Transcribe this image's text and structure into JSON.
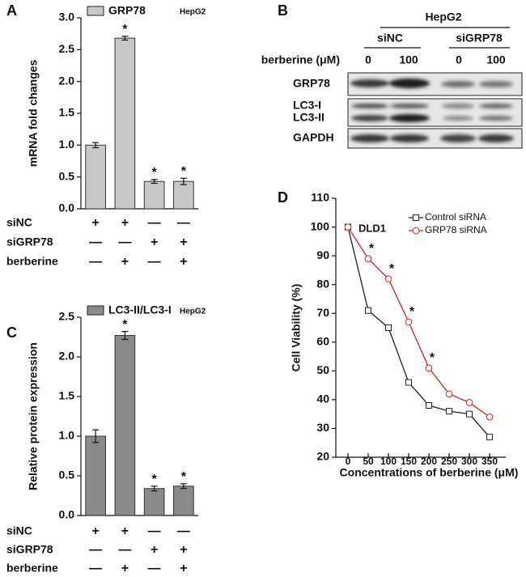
{
  "chart_data": [
    {
      "type": "bar",
      "panel": "A",
      "ylabel": "mRNA fold changes",
      "subtitle": "HepG2",
      "ylim": [
        0,
        3
      ],
      "yticks": [
        {
          "value": 0,
          "label": "0.0"
        },
        0.5,
        {
          "value": 1,
          "label": "1.0"
        },
        1.5,
        {
          "value": 2,
          "label": "2.0"
        },
        2.5,
        {
          "value": 3,
          "label": "3.0"
        }
      ],
      "series": [
        {
          "name": "GRP78",
          "color": "#c8c8c8",
          "values": [
            1.0,
            2.68,
            0.43,
            0.43
          ],
          "errors": [
            0.04,
            0.03,
            0.03,
            0.05
          ]
        }
      ],
      "annotations": [
        {
          "index": 1,
          "text": "*"
        },
        {
          "index": 2,
          "text": "*"
        },
        {
          "index": 3,
          "text": "*"
        }
      ],
      "conditions": [
        {
          "label": "siNC",
          "marks": [
            "+",
            "+",
            "—",
            "—"
          ]
        },
        {
          "label": "siGRP78",
          "marks": [
            "—",
            "—",
            "+",
            "+"
          ]
        },
        {
          "label": "berberine",
          "marks": [
            "—",
            "+",
            "—",
            "+"
          ]
        }
      ]
    },
    {
      "type": "bar",
      "panel": "C",
      "ylabel": "Relative protein expression",
      "subtitle": "HepG2",
      "ylim": [
        0,
        2.5
      ],
      "yticks": [
        {
          "value": 0,
          "label": "0.0"
        },
        0.5,
        {
          "value": 1,
          "label": "1.0"
        },
        1.5,
        {
          "value": 2,
          "label": "2.0"
        },
        2.5
      ],
      "series": [
        {
          "name": "LC3-II/LC3-I",
          "color": "#8a8a8a",
          "values": [
            1.0,
            2.27,
            0.34,
            0.37
          ],
          "errors": [
            0.08,
            0.05,
            0.03,
            0.03
          ]
        }
      ],
      "annotations": [
        {
          "index": 1,
          "text": "*"
        },
        {
          "index": 2,
          "text": "*"
        },
        {
          "index": 3,
          "text": "*"
        }
      ],
      "conditions": [
        {
          "label": "siNC",
          "marks": [
            "+",
            "+",
            "—",
            "—"
          ]
        },
        {
          "label": "siGRP78",
          "marks": [
            "—",
            "—",
            "+",
            "+"
          ]
        },
        {
          "label": "berberine",
          "marks": [
            "—",
            "+",
            "—",
            "+"
          ]
        }
      ]
    },
    {
      "type": "line",
      "panel": "D",
      "title": "DLD1",
      "xlabel": "Concentrations of berberine (μM)",
      "ylabel": "Cell Viability (%)",
      "x": [
        0,
        50,
        100,
        150,
        200,
        250,
        300,
        350
      ],
      "xlim": [
        -30,
        390
      ],
      "xticks": [
        0,
        50,
        100,
        150,
        200,
        250,
        300,
        350
      ],
      "ylim": [
        20,
        110
      ],
      "yticks": [
        20,
        30,
        40,
        50,
        60,
        70,
        80,
        90,
        100,
        110
      ],
      "series": [
        {
          "name": "Control siRNA",
          "color": "#222222",
          "marker": "square",
          "values": [
            100,
            71,
            65,
            46,
            38,
            36,
            35,
            27
          ]
        },
        {
          "name": "GRP78 siRNA",
          "color": "#d42020",
          "marker": "circle",
          "values": [
            100,
            89,
            82,
            67,
            51,
            42,
            39,
            34
          ]
        }
      ],
      "annotations": [
        {
          "series": 1,
          "index": 1,
          "text": "*"
        },
        {
          "series": 1,
          "index": 2,
          "text": "*"
        },
        {
          "series": 1,
          "index": 3,
          "text": "*"
        },
        {
          "series": 1,
          "index": 4,
          "text": "*"
        }
      ]
    }
  ],
  "blot": {
    "panel": "B",
    "cell_line": "HepG2",
    "groups": [
      "siNC",
      "siGRP78"
    ],
    "treatment": "berberine (μM)",
    "doses": [
      "0",
      "100",
      "0",
      "100"
    ],
    "rows": [
      "GRP78",
      "LC3-I",
      "LC3-II",
      "GAPDH"
    ]
  }
}
